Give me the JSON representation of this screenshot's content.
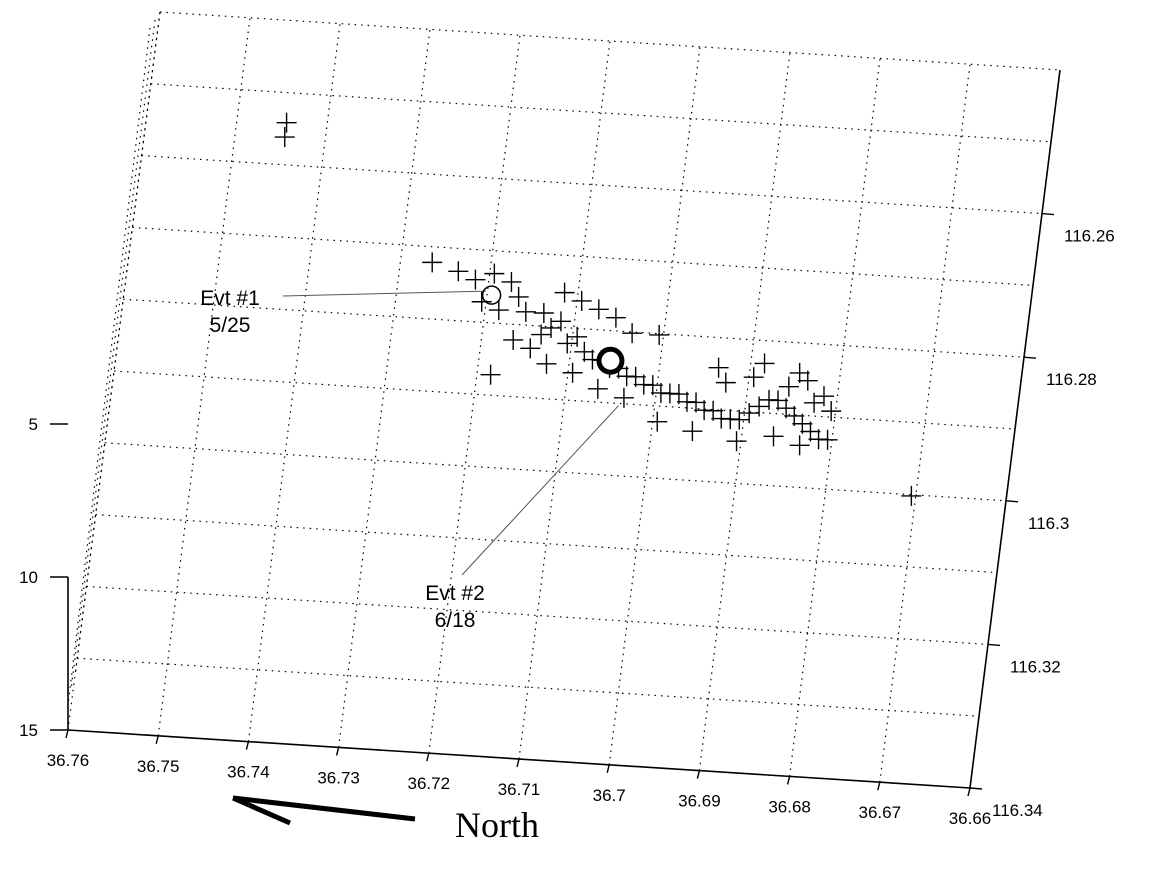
{
  "chart_data": {
    "type": "scatter",
    "projection": "3d",
    "grid": true,
    "x_axis": {
      "ticks": [
        36.76,
        36.75,
        36.74,
        36.73,
        36.72,
        36.71,
        36.7,
        36.69,
        36.68,
        36.67,
        36.66
      ],
      "tick_labels": [
        "36.76",
        "36.75",
        "36.74",
        "36.73",
        "36.72",
        "36.71",
        "36.7",
        "36.69",
        "36.68",
        "36.67",
        "36.66"
      ],
      "range": [
        36.76,
        36.66
      ]
    },
    "y_axis": {
      "ticks": [
        116.26,
        116.28,
        116.3,
        116.32,
        116.34
      ],
      "tick_labels": [
        "116.26",
        "116.28",
        "116.3",
        "116.32",
        "116.34"
      ],
      "range": [
        116.34,
        116.24
      ]
    },
    "z_axis": {
      "ticks": [
        5,
        10,
        15
      ],
      "tick_labels": [
        "5",
        "10",
        "15"
      ],
      "range": [
        15,
        0
      ],
      "reversed": true
    },
    "series": [
      {
        "marker": "plus",
        "points": [
          [
            36.744,
            116.259,
            5
          ],
          [
            36.744,
            116.261,
            5
          ],
          [
            36.726,
            116.277,
            5
          ],
          [
            36.723,
            116.278,
            5
          ],
          [
            36.721,
            116.279,
            5
          ],
          [
            36.719,
            116.278,
            5
          ],
          [
            36.717,
            116.279,
            5
          ],
          [
            36.716,
            116.281,
            5
          ],
          [
            36.72,
            116.282,
            5
          ],
          [
            36.718,
            116.283,
            5
          ],
          [
            36.715,
            116.283,
            5
          ],
          [
            36.713,
            116.283,
            5
          ],
          [
            36.712,
            116.285,
            5
          ],
          [
            36.711,
            116.284,
            5
          ],
          [
            36.713,
            116.286,
            5
          ],
          [
            36.71,
            116.287,
            5
          ],
          [
            36.709,
            116.286,
            5
          ],
          [
            36.708,
            116.288,
            5
          ],
          [
            36.707,
            116.289,
            5
          ],
          [
            36.706,
            116.289,
            5
          ],
          [
            36.705,
            116.29,
            5
          ],
          [
            36.704,
            116.29,
            5
          ],
          [
            36.703,
            116.291,
            5
          ],
          [
            36.702,
            116.291,
            5
          ],
          [
            36.701,
            116.292,
            5
          ],
          [
            36.7,
            116.292,
            5
          ],
          [
            36.699,
            116.293,
            5
          ],
          [
            36.698,
            116.293,
            5
          ],
          [
            36.697,
            116.293,
            5
          ],
          [
            36.696,
            116.294,
            5
          ],
          [
            36.695,
            116.294,
            5
          ],
          [
            36.694,
            116.295,
            5
          ],
          [
            36.693,
            116.295,
            5
          ],
          [
            36.692,
            116.296,
            5
          ],
          [
            36.691,
            116.296,
            5
          ],
          [
            36.69,
            116.296,
            5
          ],
          [
            36.689,
            116.295,
            5
          ],
          [
            36.688,
            116.294,
            5
          ],
          [
            36.687,
            116.293,
            5
          ],
          [
            36.686,
            116.293,
            5
          ],
          [
            36.685,
            116.294,
            5
          ],
          [
            36.684,
            116.295,
            5
          ],
          [
            36.683,
            116.296,
            5
          ],
          [
            36.682,
            116.297,
            5
          ],
          [
            36.681,
            116.298,
            5
          ],
          [
            36.68,
            116.298,
            5
          ],
          [
            36.711,
            116.28,
            5
          ],
          [
            36.709,
            116.281,
            5
          ],
          [
            36.707,
            116.282,
            5
          ],
          [
            36.705,
            116.283,
            5
          ],
          [
            36.703,
            116.285,
            5
          ],
          [
            36.7,
            116.285,
            5
          ],
          [
            36.716,
            116.287,
            5
          ],
          [
            36.714,
            116.288,
            5
          ],
          [
            36.712,
            116.29,
            5
          ],
          [
            36.709,
            116.291,
            5
          ],
          [
            36.706,
            116.293,
            5
          ],
          [
            36.703,
            116.294,
            5
          ],
          [
            36.699,
            116.297,
            5
          ],
          [
            36.695,
            116.298,
            5
          ],
          [
            36.69,
            116.299,
            5
          ],
          [
            36.686,
            116.298,
            5
          ],
          [
            36.683,
            116.299,
            5
          ],
          [
            36.693,
            116.289,
            5
          ],
          [
            36.689,
            116.29,
            5
          ],
          [
            36.685,
            116.291,
            5
          ],
          [
            36.683,
            116.29,
            5
          ],
          [
            36.681,
            116.292,
            5
          ],
          [
            36.68,
            116.294,
            5
          ],
          [
            36.682,
            116.293,
            5
          ],
          [
            36.684,
            116.289,
            5
          ],
          [
            36.692,
            116.291,
            5
          ],
          [
            36.688,
            116.288,
            5
          ],
          [
            36.718,
            116.292,
            5
          ],
          [
            36.67,
            116.305,
            5
          ]
        ]
      }
    ],
    "annotations": [
      {
        "label": "Evt #1",
        "date": "5/25",
        "point": [
          36.719,
          116.281,
          5
        ],
        "marker": "open-circle"
      },
      {
        "label": "Evt #2",
        "date": "6/18",
        "point": [
          36.705,
          116.289,
          5
        ],
        "marker": "filled-circle"
      }
    ],
    "direction_arrow": {
      "label": "North"
    }
  }
}
